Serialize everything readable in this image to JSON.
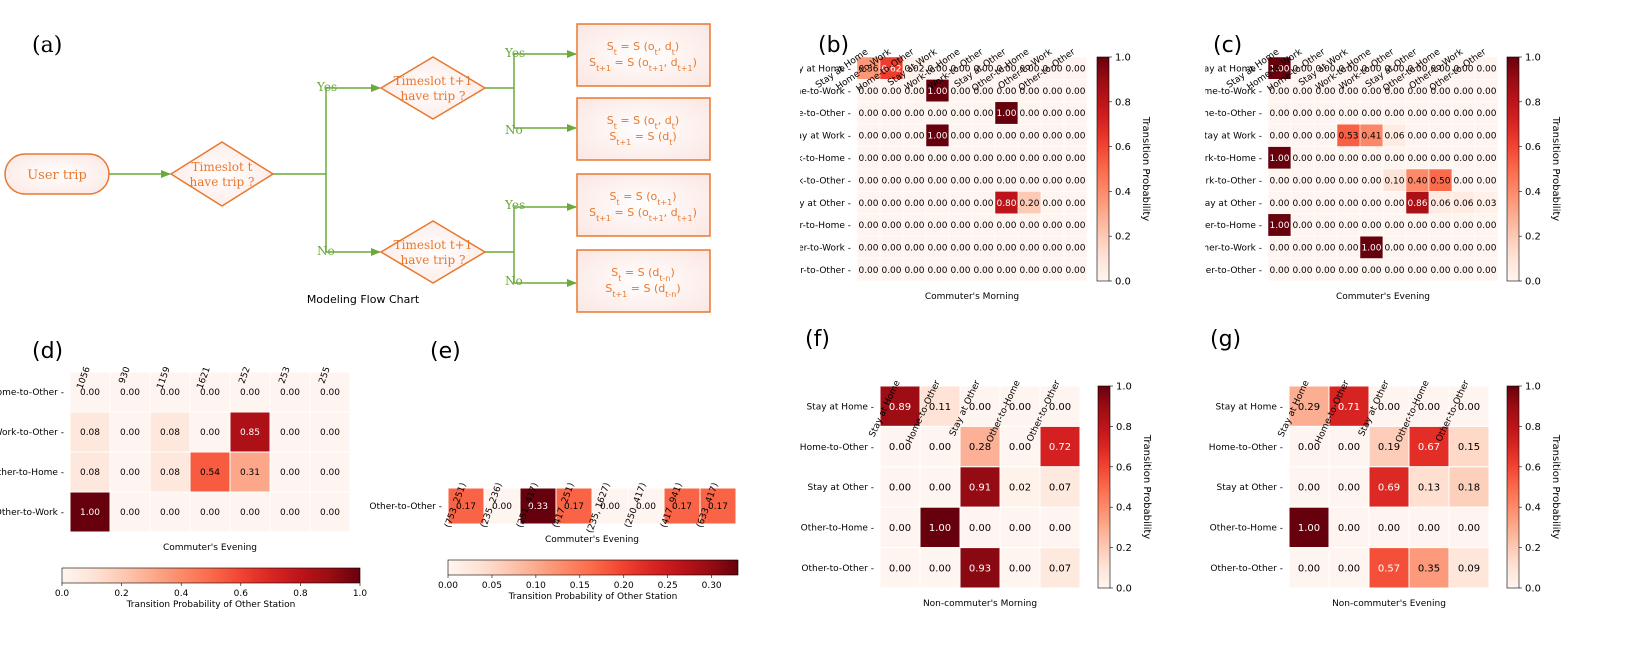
{
  "figure": {
    "flowchart": {
      "panel_label": "(a)",
      "caption": "Modeling Flow Chart",
      "start": "User trip",
      "decision_t": [
        "Timeslot t",
        "have trip ?"
      ],
      "decision_t1": [
        "Timeslot t+1",
        "have trip ?"
      ],
      "yes": "Yes",
      "no": "No",
      "outcomes": [
        {
          "l1_pre": "S",
          "l1_sub": "t",
          "l1_mid": " = S (o",
          "l1_sub2": "t",
          "l1_mid2": ", d",
          "l1_sub3": "t",
          "l1_end": ")",
          "l2_pre": "S",
          "l2_sub": "t+1",
          "l2_mid": " = S (o",
          "l2_sub2": "t+1",
          "l2_mid2": ", d",
          "l2_sub3": "t+1",
          "l2_end": ")"
        },
        {
          "l1_pre": "S",
          "l1_sub": "t",
          "l1_mid": " = S (o",
          "l1_sub2": "t",
          "l1_mid2": ", d",
          "l1_sub3": "t",
          "l1_end": ")",
          "l2_pre": "S",
          "l2_sub": "t+1",
          "l2_mid": " = S (d",
          "l2_sub2": "t",
          "l2_mid2": "",
          "l2_sub3": "",
          "l2_end": ")"
        },
        {
          "l1_pre": "S",
          "l1_sub": "t",
          "l1_mid": " = S (o",
          "l1_sub2": "t+1",
          "l1_mid2": "",
          "l1_sub3": "",
          "l1_end": ")",
          "l2_pre": "S",
          "l2_sub": "t+1",
          "l2_mid": " = S (o",
          "l2_sub2": "t+1",
          "l2_mid2": ", d",
          "l2_sub3": "t+1",
          "l2_end": ")"
        },
        {
          "l1_pre": "S",
          "l1_sub": "t",
          "l1_mid": " = S (d",
          "l1_sub2": "t-n",
          "l1_mid2": "",
          "l1_sub3": "",
          "l1_end": ")",
          "l2_pre": "S",
          "l2_sub": "t+1",
          "l2_mid": " = S (d",
          "l2_sub2": "t-n",
          "l2_mid2": "",
          "l2_sub3": "",
          "l2_end": ")"
        }
      ]
    },
    "colors": {
      "accent": "#e8782e",
      "arrow": "#6aaa3a",
      "fill": "#fff5f2"
    }
  },
  "chart_data": [
    {
      "panel": "(b)",
      "type": "heatmap",
      "xlabel": "Commuter's Morning",
      "rows": [
        "Stay at Home",
        "Home-to-Work",
        "Home-to-Other",
        "Stay at Work",
        "Work-to-Home",
        "Work-to-Other",
        "Stay at Other",
        "Other-to-Home",
        "Other-to-Work",
        "Other-to-Other"
      ],
      "cols": [
        "Stay at Home",
        "Home-to-Work",
        "Home-to-Other",
        "Stay at Work",
        "Work-to-Home",
        "Work-to-Other",
        "Stay at Other",
        "Other-to-Home",
        "Other-to-Work",
        "Other-to-Other"
      ],
      "values": [
        [
          0.36,
          0.62,
          0.02,
          0,
          0,
          0,
          0,
          0,
          0,
          0
        ],
        [
          0,
          0,
          0,
          1,
          0,
          0,
          0,
          0,
          0,
          0
        ],
        [
          0,
          0,
          0,
          0,
          0,
          0,
          1,
          0,
          0,
          0
        ],
        [
          0,
          0,
          0,
          1,
          0,
          0,
          0,
          0,
          0,
          0
        ],
        [
          0,
          0,
          0,
          0,
          0,
          0,
          0,
          0,
          0,
          0
        ],
        [
          0,
          0,
          0,
          0,
          0,
          0,
          0,
          0,
          0,
          0
        ],
        [
          0,
          0,
          0,
          0,
          0,
          0,
          0.8,
          0.2,
          0,
          0
        ],
        [
          0,
          0,
          0,
          0,
          0,
          0,
          0,
          0,
          0,
          0
        ],
        [
          0,
          0,
          0,
          0,
          0,
          0,
          0,
          0,
          0,
          0
        ],
        [
          0,
          0,
          0,
          0,
          0,
          0,
          0,
          0,
          0,
          0
        ]
      ],
      "vmax": 1,
      "colorbar_label": "Transition Probability",
      "colorbar_ticks": [
        "0.0",
        "0.2",
        "0.4",
        "0.6",
        "0.8",
        "1.0"
      ]
    },
    {
      "panel": "(c)",
      "type": "heatmap",
      "xlabel": "Commuter's Evening",
      "rows": [
        "Stay at Home",
        "Home-to-Work",
        "Home-to-Other",
        "Stay at Work",
        "Work-to-Home",
        "Work-to-Other",
        "Stay at Other",
        "Other-to-Home",
        "Other-to-Work",
        "Other-to-Other"
      ],
      "cols": [
        "Stay at Home",
        "Home-to-Work",
        "Home-to-Other",
        "Stay at Work",
        "Work-to-Home",
        "Work-to-Other",
        "Stay at Other",
        "Other-to-Home",
        "Other-to-Work",
        "Other-to-Other"
      ],
      "values": [
        [
          1,
          0,
          0,
          0,
          0,
          0,
          0,
          0,
          0,
          0
        ],
        [
          0,
          0,
          0,
          0,
          0,
          0,
          0,
          0,
          0,
          0
        ],
        [
          0,
          0,
          0,
          0,
          0,
          0,
          0,
          0,
          0,
          0
        ],
        [
          0,
          0,
          0,
          0.53,
          0.41,
          0.06,
          0,
          0,
          0,
          0
        ],
        [
          1,
          0,
          0,
          0,
          0,
          0,
          0,
          0,
          0,
          0
        ],
        [
          0,
          0,
          0,
          0,
          0,
          0.1,
          0.4,
          0.5,
          0,
          0
        ],
        [
          0,
          0,
          0,
          0,
          0,
          0,
          0.86,
          0.06,
          0.06,
          0.03
        ],
        [
          1,
          0,
          0,
          0,
          0,
          0,
          0,
          0,
          0,
          0
        ],
        [
          0,
          0,
          0,
          0,
          1,
          0,
          0,
          0,
          0,
          0
        ],
        [
          0,
          0,
          0,
          0,
          0,
          0,
          0,
          0,
          0,
          0
        ]
      ],
      "vmax": 1,
      "colorbar_label": "Transition Probability",
      "colorbar_ticks": [
        "0.0",
        "0.2",
        "0.4",
        "0.6",
        "0.8",
        "1.0"
      ]
    },
    {
      "panel": "(d)",
      "type": "heatmap",
      "xlabel": "Commuter's Evening",
      "rows": [
        "Home-to-Other",
        "Work-to-Other",
        "Other-to-Home",
        "Other-to-Work"
      ],
      "cols": [
        "1056",
        "930",
        "1159",
        "1621",
        "252",
        "253",
        "255"
      ],
      "values": [
        [
          0,
          0,
          0,
          0,
          0,
          0,
          0
        ],
        [
          0.08,
          0,
          0.08,
          0,
          0.85,
          0,
          0
        ],
        [
          0.08,
          0,
          0.08,
          0.54,
          0.31,
          0,
          0
        ],
        [
          1,
          0,
          0,
          0,
          0,
          0,
          0
        ]
      ],
      "vmax": 1,
      "colorbar_label": "Transition Probability of Other Station",
      "colorbar_ticks": [
        "0.0",
        "0.2",
        "0.4",
        "0.6",
        "0.8",
        "1.0"
      ]
    },
    {
      "panel": "(e)",
      "type": "heatmap",
      "xlabel": "Commuter's Evening",
      "rows": [
        "Other-to-Other"
      ],
      "cols": [
        "(753, 251)",
        "(235, 236)",
        "(251, 417)",
        "(417, 251)",
        "(235, 1627)",
        "(250, 417)",
        "(417, 941)",
        "(633, 417)"
      ],
      "values": [
        [
          0.17,
          0,
          0.33,
          0.17,
          0,
          0,
          0.17,
          0.17
        ]
      ],
      "vmax": 0.33,
      "colorbar_label": "Transition Probability of Other Station",
      "colorbar_ticks": [
        "0.00",
        "0.05",
        "0.10",
        "0.15",
        "0.20",
        "0.25",
        "0.30"
      ]
    },
    {
      "panel": "(f)",
      "type": "heatmap",
      "xlabel": "Non-commuter's Morning",
      "rows": [
        "Stay at Home",
        "Home-to-Other",
        "Stay at Other",
        "Other-to-Home",
        "Other-to-Other"
      ],
      "cols": [
        "Stay at Home",
        "Home-to-Other",
        "Stay at Other",
        "Other-to-Home",
        "Other-to-Other"
      ],
      "values": [
        [
          0.89,
          0.11,
          0,
          0,
          0
        ],
        [
          0,
          0,
          0.28,
          0,
          0.72
        ],
        [
          0,
          0,
          0.91,
          0.02,
          0.07
        ],
        [
          0,
          1,
          0,
          0,
          0
        ],
        [
          0,
          0,
          0.93,
          0,
          0.07
        ]
      ],
      "vmax": 1,
      "colorbar_label": "Transition Probability",
      "colorbar_ticks": [
        "0.0",
        "0.2",
        "0.4",
        "0.6",
        "0.8",
        "1.0"
      ]
    },
    {
      "panel": "(g)",
      "type": "heatmap",
      "xlabel": "Non-commuter's Evening",
      "rows": [
        "Stay at Home",
        "Home-to-Other",
        "Stay at Other",
        "Other-to-Home",
        "Other-to-Other"
      ],
      "cols": [
        "Stay at Home",
        "Home-to-Other",
        "Stay at Other",
        "Other-to-Home",
        "Other-to-Other"
      ],
      "values": [
        [
          0.29,
          0.71,
          0,
          0,
          0
        ],
        [
          0,
          0,
          0.19,
          0.67,
          0.15
        ],
        [
          0,
          0,
          0.69,
          0.13,
          0.18
        ],
        [
          1,
          0,
          0,
          0,
          0
        ],
        [
          0,
          0,
          0.57,
          0.35,
          0.09
        ]
      ],
      "vmax": 1,
      "colorbar_label": "Transition Probability",
      "colorbar_ticks": [
        "0.0",
        "0.2",
        "0.4",
        "0.6",
        "0.8",
        "1.0"
      ]
    }
  ]
}
